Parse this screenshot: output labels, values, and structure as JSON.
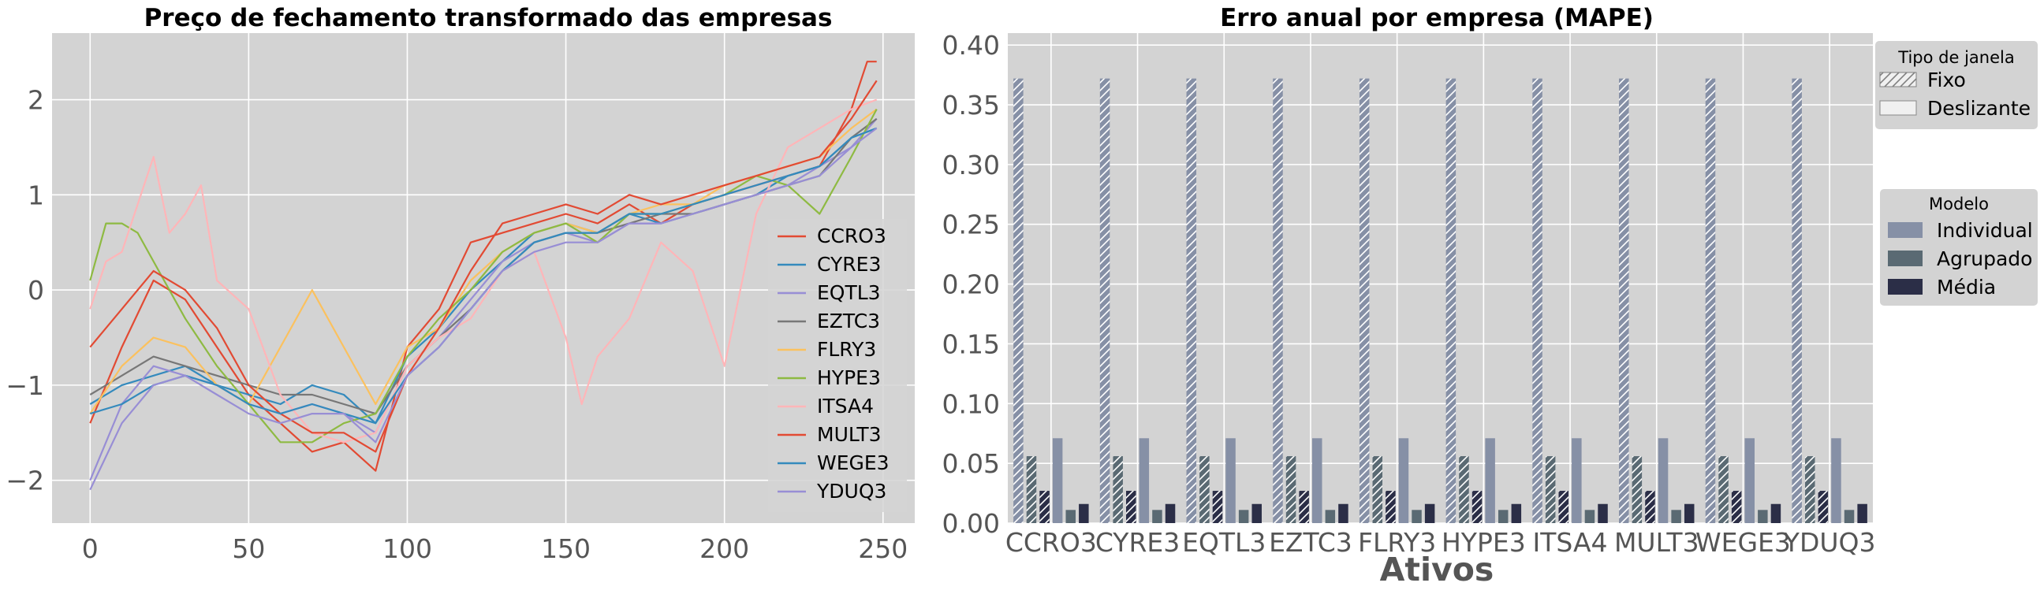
{
  "chart_data": [
    {
      "type": "line",
      "title": "Preço de fechamento transformado das empresas",
      "xlabel": "",
      "ylabel": "",
      "xlim": [
        -12,
        260
      ],
      "ylim": [
        -2.45,
        2.7
      ],
      "xticks": [
        0,
        50,
        100,
        150,
        200,
        250
      ],
      "yticks": [
        -2,
        -1,
        0,
        1,
        2
      ],
      "xtick_labels": [
        "0",
        "50",
        "100",
        "150",
        "200",
        "250"
      ],
      "ytick_labels": [
        "−2",
        "−1",
        "0",
        "1",
        "2"
      ],
      "grid": true,
      "legend_position": "lower-right",
      "series": [
        {
          "name": "CCRO3",
          "color": "#E24A33",
          "x": [
            0,
            10,
            20,
            30,
            40,
            50,
            60,
            70,
            80,
            90,
            100,
            110,
            120,
            130,
            140,
            150,
            160,
            170,
            180,
            190,
            200,
            210,
            220,
            230,
            240,
            245,
            248
          ],
          "y": [
            -1.4,
            -0.6,
            0.1,
            -0.1,
            -0.6,
            -1.1,
            -1.4,
            -1.7,
            -1.6,
            -1.9,
            -0.6,
            -0.2,
            0.5,
            0.6,
            0.7,
            0.8,
            0.7,
            0.9,
            0.7,
            0.9,
            1.0,
            1.1,
            1.2,
            1.3,
            1.9,
            2.4,
            2.4
          ]
        },
        {
          "name": "CYRE3",
          "color": "#348ABD",
          "x": [
            0,
            10,
            20,
            30,
            40,
            50,
            60,
            70,
            80,
            90,
            100,
            110,
            120,
            130,
            140,
            150,
            160,
            170,
            180,
            190,
            200,
            210,
            220,
            230,
            240,
            248
          ],
          "y": [
            -1.2,
            -1.0,
            -0.9,
            -0.8,
            -1.0,
            -1.1,
            -1.2,
            -1.0,
            -1.1,
            -1.4,
            -0.7,
            -0.4,
            0.0,
            0.3,
            0.6,
            0.7,
            0.6,
            0.8,
            0.7,
            0.8,
            0.9,
            1.0,
            1.2,
            1.3,
            1.6,
            1.7
          ]
        },
        {
          "name": "EQTL3",
          "color": "#988ED5",
          "x": [
            0,
            10,
            20,
            30,
            40,
            50,
            60,
            70,
            80,
            90,
            100,
            110,
            120,
            130,
            140,
            150,
            160,
            170,
            180,
            190,
            200,
            210,
            220,
            230,
            240,
            248
          ],
          "y": [
            -2.0,
            -1.2,
            -0.8,
            -0.9,
            -1.0,
            -1.2,
            -1.3,
            -1.2,
            -1.3,
            -1.5,
            -0.8,
            -0.5,
            -0.1,
            0.3,
            0.5,
            0.6,
            0.5,
            0.7,
            0.7,
            0.8,
            0.9,
            1.0,
            1.1,
            1.3,
            1.5,
            1.8
          ]
        },
        {
          "name": "EZTC3",
          "color": "#777777",
          "x": [
            0,
            10,
            20,
            30,
            40,
            50,
            60,
            70,
            80,
            90,
            100,
            110,
            120,
            130,
            140,
            150,
            160,
            170,
            180,
            190,
            200,
            210,
            220,
            230,
            240,
            248
          ],
          "y": [
            -1.1,
            -0.9,
            -0.7,
            -0.8,
            -0.9,
            -1.0,
            -1.1,
            -1.1,
            -1.2,
            -1.3,
            -0.8,
            -0.5,
            -0.2,
            0.2,
            0.5,
            0.6,
            0.6,
            0.7,
            0.8,
            0.8,
            0.9,
            1.0,
            1.1,
            1.2,
            1.6,
            1.8
          ]
        },
        {
          "name": "FLRY3",
          "color": "#FBC15E",
          "x": [
            0,
            10,
            20,
            30,
            40,
            50,
            60,
            70,
            80,
            90,
            100,
            110,
            120,
            130,
            140,
            150,
            160,
            170,
            180,
            190,
            200,
            210,
            220,
            230,
            240,
            248
          ],
          "y": [
            -1.3,
            -0.8,
            -0.5,
            -0.6,
            -1.0,
            -1.2,
            -0.6,
            0.0,
            -0.6,
            -1.2,
            -0.6,
            -0.4,
            0.1,
            0.4,
            0.6,
            0.7,
            0.6,
            0.8,
            0.9,
            0.9,
            1.1,
            1.2,
            1.3,
            1.4,
            1.7,
            1.9
          ]
        },
        {
          "name": "HYPE3",
          "color": "#8EBA42",
          "x": [
            0,
            5,
            10,
            15,
            20,
            30,
            40,
            50,
            60,
            70,
            80,
            90,
            100,
            110,
            120,
            130,
            140,
            150,
            160,
            170,
            180,
            190,
            200,
            210,
            220,
            230,
            240,
            248
          ],
          "y": [
            0.1,
            0.7,
            0.7,
            0.6,
            0.3,
            -0.3,
            -0.8,
            -1.2,
            -1.6,
            -1.6,
            -1.4,
            -1.3,
            -0.7,
            -0.3,
            0.0,
            0.4,
            0.6,
            0.7,
            0.5,
            0.8,
            0.8,
            0.9,
            1.0,
            1.2,
            1.1,
            0.8,
            1.4,
            1.9
          ]
        },
        {
          "name": "ITSA4",
          "color": "#FFB5B8",
          "x": [
            0,
            5,
            10,
            15,
            20,
            25,
            30,
            35,
            40,
            50,
            60,
            70,
            80,
            90,
            100,
            110,
            120,
            130,
            140,
            150,
            155,
            160,
            170,
            180,
            190,
            200,
            210,
            220,
            230,
            240,
            248
          ],
          "y": [
            -0.2,
            0.3,
            0.4,
            0.9,
            1.4,
            0.6,
            0.8,
            1.1,
            0.1,
            -0.2,
            -1.1,
            -1.5,
            -1.6,
            -1.5,
            -0.8,
            -0.5,
            -0.3,
            0.2,
            0.4,
            -0.5,
            -1.2,
            -0.7,
            -0.3,
            0.5,
            0.2,
            -0.8,
            0.8,
            1.5,
            1.7,
            1.9,
            2.0
          ]
        },
        {
          "name": "MULT3",
          "color": "#E24A33",
          "x": [
            0,
            10,
            20,
            30,
            40,
            50,
            60,
            70,
            80,
            90,
            100,
            110,
            120,
            130,
            140,
            150,
            160,
            170,
            180,
            190,
            200,
            210,
            220,
            230,
            240,
            248
          ],
          "y": [
            -0.6,
            -0.2,
            0.2,
            0.0,
            -0.4,
            -1.0,
            -1.3,
            -1.5,
            -1.5,
            -1.7,
            -0.9,
            -0.4,
            0.2,
            0.7,
            0.8,
            0.9,
            0.8,
            1.0,
            0.9,
            1.0,
            1.1,
            1.2,
            1.3,
            1.4,
            1.8,
            2.2
          ]
        },
        {
          "name": "WEGE3",
          "color": "#348ABD",
          "x": [
            0,
            10,
            20,
            30,
            40,
            50,
            60,
            70,
            80,
            90,
            100,
            110,
            120,
            130,
            140,
            150,
            160,
            170,
            180,
            190,
            200,
            210,
            220,
            230,
            240,
            248
          ],
          "y": [
            -1.3,
            -1.2,
            -1.0,
            -0.9,
            -1.0,
            -1.2,
            -1.3,
            -1.2,
            -1.3,
            -1.4,
            -0.9,
            -0.6,
            -0.2,
            0.2,
            0.5,
            0.6,
            0.6,
            0.8,
            0.8,
            0.9,
            1.0,
            1.1,
            1.2,
            1.3,
            1.6,
            1.7
          ]
        },
        {
          "name": "YDUQ3",
          "color": "#988ED5",
          "x": [
            0,
            10,
            20,
            30,
            40,
            50,
            60,
            70,
            80,
            90,
            100,
            110,
            120,
            130,
            140,
            150,
            160,
            170,
            180,
            190,
            200,
            210,
            220,
            230,
            240,
            248
          ],
          "y": [
            -2.1,
            -1.4,
            -1.0,
            -0.9,
            -1.1,
            -1.3,
            -1.4,
            -1.3,
            -1.3,
            -1.6,
            -0.9,
            -0.6,
            -0.2,
            0.2,
            0.4,
            0.5,
            0.5,
            0.7,
            0.7,
            0.8,
            0.9,
            1.0,
            1.1,
            1.2,
            1.5,
            1.7
          ]
        }
      ]
    },
    {
      "type": "bar",
      "title": "Erro anual por empresa (MAPE)",
      "xlabel": "Ativos",
      "ylabel": "",
      "ylim": [
        0,
        0.41
      ],
      "yticks": [
        0,
        0.05,
        0.1,
        0.15,
        0.2,
        0.25,
        0.3,
        0.35,
        0.4
      ],
      "ytick_labels": [
        "0.00",
        "0.05",
        "0.10",
        "0.15",
        "0.20",
        "0.25",
        "0.30",
        "0.35",
        "0.40"
      ],
      "grid": true,
      "categories": [
        "CCRO3",
        "CYRE3",
        "EQTL3",
        "EZTC3",
        "FLRY3",
        "HYPE3",
        "ITSA4",
        "MULT3",
        "WEGE3",
        "YDUQ3"
      ],
      "series": [
        {
          "name": "Individual",
          "window": "Fixo",
          "color": "#8690A6",
          "hatch": true,
          "values": [
            0.372,
            0.372,
            0.372,
            0.372,
            0.372,
            0.372,
            0.372,
            0.372,
            0.372,
            0.372
          ]
        },
        {
          "name": "Agrupado",
          "window": "Fixo",
          "color": "#5A6A73",
          "hatch": true,
          "values": [
            0.056,
            0.056,
            0.056,
            0.056,
            0.056,
            0.056,
            0.056,
            0.056,
            0.056,
            0.056
          ]
        },
        {
          "name": "Média",
          "window": "Fixo",
          "color": "#2B2E47",
          "hatch": true,
          "values": [
            0.027,
            0.027,
            0.027,
            0.027,
            0.027,
            0.027,
            0.027,
            0.027,
            0.027,
            0.027
          ]
        },
        {
          "name": "Individual",
          "window": "Deslizante",
          "color": "#8690A6",
          "hatch": false,
          "values": [
            0.071,
            0.071,
            0.071,
            0.071,
            0.071,
            0.071,
            0.071,
            0.071,
            0.071,
            0.071
          ]
        },
        {
          "name": "Agrupado",
          "window": "Deslizante",
          "color": "#5A6A73",
          "hatch": false,
          "values": [
            0.011,
            0.011,
            0.011,
            0.011,
            0.011,
            0.011,
            0.011,
            0.011,
            0.011,
            0.011
          ]
        },
        {
          "name": "Média",
          "window": "Deslizante",
          "color": "#2B2E47",
          "hatch": false,
          "values": [
            0.016,
            0.016,
            0.016,
            0.016,
            0.016,
            0.016,
            0.016,
            0.016,
            0.016,
            0.016
          ]
        }
      ],
      "legends": [
        {
          "title": "Tipo de janela",
          "position": "upper-right-outside",
          "entries": [
            "Fixo",
            "Deslizante"
          ]
        },
        {
          "title": "Modelo",
          "position": "right-outside",
          "entries": [
            "Individual",
            "Agrupado",
            "Média"
          ]
        }
      ]
    }
  ]
}
